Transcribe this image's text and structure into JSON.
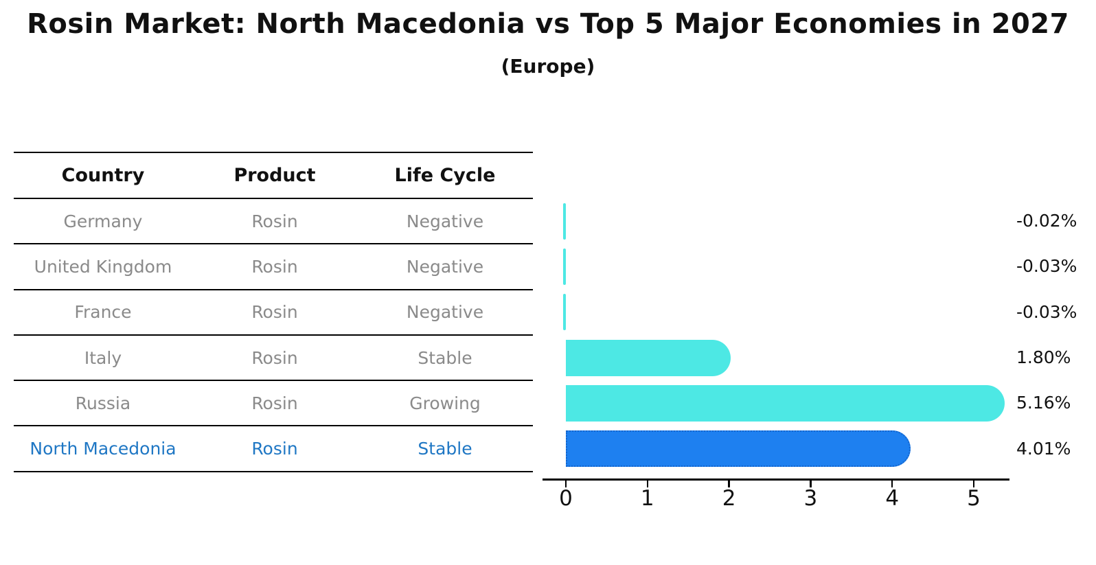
{
  "header": {
    "title": "Rosin Market: North Macedonia vs Top 5 Major Economies in 2027",
    "subtitle": "(Europe)"
  },
  "table": {
    "headers": [
      "Country",
      "Product",
      "Life Cycle"
    ],
    "rows": [
      {
        "country": "Germany",
        "product": "Rosin",
        "life_cycle": "Negative",
        "highlight": false
      },
      {
        "country": "United Kingdom",
        "product": "Rosin",
        "life_cycle": "Negative",
        "highlight": false
      },
      {
        "country": "France",
        "product": "Rosin",
        "life_cycle": "Negative",
        "highlight": false
      },
      {
        "country": "Italy",
        "product": "Rosin",
        "life_cycle": "Stable",
        "highlight": false
      },
      {
        "country": "Russia",
        "product": "Rosin",
        "life_cycle": "Growing",
        "highlight": false
      },
      {
        "country": "North Macedonia",
        "product": "Rosin",
        "life_cycle": "Stable",
        "highlight": true
      }
    ]
  },
  "chart_data": {
    "type": "bar",
    "orientation": "horizontal",
    "title": "Rosin Market: North Macedonia vs Top 5 Major Economies in 2027",
    "subtitle": "(Europe)",
    "categories": [
      "Germany",
      "United Kingdom",
      "France",
      "Italy",
      "Russia",
      "North Macedonia"
    ],
    "values": [
      -0.02,
      -0.03,
      -0.03,
      1.8,
      5.16,
      4.01
    ],
    "value_labels": [
      "-0.02%",
      "-0.03%",
      "-0.03%",
      "1.80%",
      "5.16%",
      "4.01%"
    ],
    "xlabel": "",
    "ylabel": "",
    "xticks": [
      0,
      1,
      2,
      3,
      4,
      5
    ],
    "xlim": [
      -0.3,
      5.45
    ],
    "grid": false,
    "legend": false,
    "bar_color": "#4DE8E4",
    "highlight_color": "#1E80F0",
    "highlight_edge_color": "#1465CC",
    "highlight_category": "North Macedonia"
  },
  "colors": {
    "table_text": "#8a8a8a",
    "highlight_text": "#1f77c4",
    "axis_line": "#000000"
  }
}
